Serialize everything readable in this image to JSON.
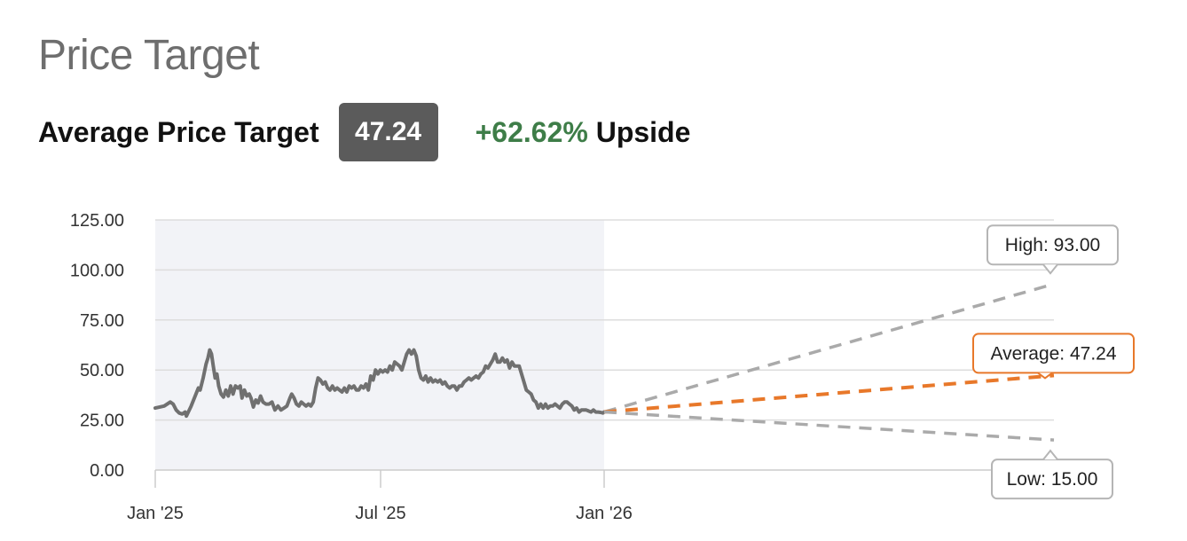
{
  "header": {
    "title": "Price Target",
    "avg_label": "Average Price Target",
    "avg_value": "47.24",
    "upside_pct": "+62.62%",
    "upside_word": "Upside"
  },
  "chart_data": {
    "type": "line",
    "title": "",
    "xlabel": "",
    "ylabel": "",
    "ylim": [
      0,
      125
    ],
    "y_ticks": [
      "0.00",
      "25.00",
      "50.00",
      "75.00",
      "100.00",
      "125.00"
    ],
    "x_ticks": [
      "Jan '25",
      "Jul '25",
      "Jan '26"
    ],
    "grid": true,
    "history_shaded": true,
    "colors": {
      "price": "#707070",
      "high": "#aaaaaa",
      "low": "#aaaaaa",
      "average": "#e8782a",
      "shade": "#f2f3f7",
      "grid": "#dddddd"
    },
    "price_series": [
      [
        0,
        31
      ],
      [
        1.5,
        32
      ],
      [
        2.5,
        34
      ],
      [
        3,
        33
      ],
      [
        3.5,
        30
      ],
      [
        4,
        28.5
      ],
      [
        4.5,
        28
      ],
      [
        5,
        29
      ],
      [
        5.2,
        27
      ],
      [
        6,
        32
      ],
      [
        6.8,
        38
      ],
      [
        7.2,
        41
      ],
      [
        7.5,
        40
      ],
      [
        8,
        46
      ],
      [
        8.5,
        53
      ],
      [
        8.8,
        56
      ],
      [
        9.1,
        60
      ],
      [
        9.4,
        58
      ],
      [
        9.7,
        52
      ],
      [
        10,
        46
      ],
      [
        10.3,
        48
      ],
      [
        10.6,
        42
      ],
      [
        11,
        38
      ],
      [
        11.4,
        36.5
      ],
      [
        11.8,
        40
      ],
      [
        12.2,
        37
      ],
      [
        12.6,
        42
      ],
      [
        13,
        38
      ],
      [
        13.4,
        42
      ],
      [
        13.8,
        41
      ],
      [
        14.2,
        42
      ],
      [
        14.5,
        36
      ],
      [
        14.9,
        40
      ],
      [
        15.3,
        37
      ],
      [
        15.7,
        38
      ],
      [
        16,
        36
      ],
      [
        16.4,
        31.5
      ],
      [
        16.8,
        35
      ],
      [
        17.2,
        33.5
      ],
      [
        17.6,
        37
      ],
      [
        18,
        34
      ],
      [
        18.5,
        33
      ],
      [
        19,
        33
      ],
      [
        19.5,
        34
      ],
      [
        20,
        30
      ],
      [
        20.5,
        32
      ],
      [
        21,
        30
      ],
      [
        21.5,
        31
      ],
      [
        22,
        32
      ],
      [
        22.5,
        36
      ],
      [
        22.8,
        38
      ],
      [
        23.2,
        36
      ],
      [
        23.6,
        33
      ],
      [
        24,
        32
      ],
      [
        24.4,
        34
      ],
      [
        24.8,
        33
      ],
      [
        25.2,
        32
      ],
      [
        25.6,
        33
      ],
      [
        26,
        32
      ],
      [
        26.4,
        34
      ],
      [
        26.8,
        41
      ],
      [
        27.2,
        46
      ],
      [
        27.6,
        45
      ],
      [
        28,
        43
      ],
      [
        28.4,
        44
      ],
      [
        28.8,
        41
      ],
      [
        29.2,
        40
      ],
      [
        29.6,
        42
      ],
      [
        30,
        40
      ],
      [
        30.4,
        41
      ],
      [
        30.8,
        40
      ],
      [
        31.2,
        39
      ],
      [
        31.6,
        41
      ],
      [
        32,
        39
      ],
      [
        32.4,
        42
      ],
      [
        32.8,
        41
      ],
      [
        33.2,
        42
      ],
      [
        33.6,
        40
      ],
      [
        34,
        40
      ],
      [
        34.4,
        42
      ],
      [
        34.8,
        41
      ],
      [
        35.2,
        43
      ],
      [
        35.6,
        40
      ],
      [
        36,
        47
      ],
      [
        36.4,
        45
      ],
      [
        36.8,
        50
      ],
      [
        37.2,
        48
      ],
      [
        37.6,
        50
      ],
      [
        38,
        49
      ],
      [
        38.4,
        50
      ],
      [
        38.8,
        49
      ],
      [
        39.2,
        52
      ],
      [
        39.6,
        50
      ],
      [
        40,
        54
      ],
      [
        40.4,
        53
      ],
      [
        40.8,
        52
      ],
      [
        41.2,
        50
      ],
      [
        41.6,
        54
      ],
      [
        42,
        58
      ],
      [
        42.4,
        60
      ],
      [
        42.8,
        58
      ],
      [
        43.2,
        60
      ],
      [
        43.6,
        57
      ],
      [
        44,
        50
      ],
      [
        44.4,
        46
      ],
      [
        44.8,
        45
      ],
      [
        45.2,
        47
      ],
      [
        45.6,
        44
      ],
      [
        46,
        46
      ],
      [
        46.4,
        44
      ],
      [
        46.8,
        45
      ],
      [
        47.2,
        44
      ],
      [
        47.6,
        45
      ],
      [
        48,
        43
      ],
      [
        48.4,
        44
      ],
      [
        48.8,
        42
      ],
      [
        49.2,
        41
      ],
      [
        49.6,
        42
      ],
      [
        50,
        42
      ],
      [
        50.4,
        40
      ],
      [
        50.8,
        42
      ],
      [
        51.2,
        42
      ],
      [
        51.6,
        44
      ],
      [
        52,
        45
      ],
      [
        52.4,
        46
      ],
      [
        52.8,
        45
      ],
      [
        53.2,
        46
      ],
      [
        53.6,
        47
      ],
      [
        54,
        46
      ],
      [
        54.4,
        48
      ],
      [
        54.8,
        49
      ],
      [
        55.2,
        52
      ],
      [
        55.6,
        51
      ],
      [
        56,
        53
      ],
      [
        56.4,
        55
      ],
      [
        56.8,
        58
      ],
      [
        57.2,
        54
      ],
      [
        57.6,
        54
      ],
      [
        58,
        56
      ],
      [
        58.4,
        54
      ],
      [
        58.8,
        55
      ],
      [
        59.2,
        51
      ],
      [
        59.6,
        54
      ],
      [
        60,
        52
      ],
      [
        60.4,
        52
      ],
      [
        60.8,
        52
      ],
      [
        61.2,
        48
      ],
      [
        61.6,
        44
      ],
      [
        62,
        40
      ],
      [
        62.4,
        39
      ],
      [
        62.8,
        38
      ],
      [
        63.2,
        35
      ],
      [
        63.6,
        34
      ],
      [
        64,
        31
      ],
      [
        64.4,
        33
      ],
      [
        64.8,
        31
      ],
      [
        65.2,
        33
      ],
      [
        65.6,
        31
      ],
      [
        66,
        32
      ],
      [
        66.4,
        32
      ],
      [
        66.8,
        33
      ],
      [
        67.2,
        32
      ],
      [
        67.6,
        31
      ],
      [
        68,
        33
      ],
      [
        68.4,
        34
      ],
      [
        68.8,
        34
      ],
      [
        69.2,
        33
      ],
      [
        69.6,
        32
      ],
      [
        70,
        30
      ],
      [
        70.4,
        31
      ],
      [
        70.8,
        29
      ],
      [
        71.2,
        30
      ],
      [
        71.6,
        30
      ],
      [
        72,
        30
      ],
      [
        72.4,
        29.5
      ],
      [
        72.8,
        29
      ],
      [
        73.2,
        30
      ],
      [
        73.6,
        29
      ],
      [
        74,
        29
      ],
      [
        74.4,
        28.8
      ],
      [
        74.8,
        28.5
      ],
      [
        75,
        29.05
      ]
    ],
    "history_x_max": 75,
    "forecast_x_max": 150,
    "forecasts": [
      {
        "key": "high",
        "label": "High: 93.00",
        "value": 93.0
      },
      {
        "key": "average",
        "label": "Average: 47.24",
        "value": 47.24
      },
      {
        "key": "low",
        "label": "Low: 15.00",
        "value": 15.0
      }
    ]
  }
}
